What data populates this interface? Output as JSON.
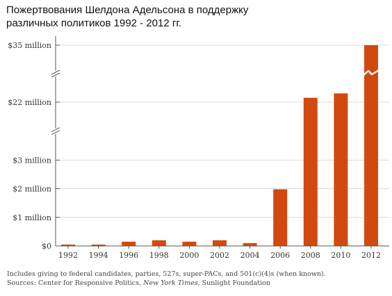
{
  "title_lines": [
    "Пожертвования Шелдона Адельсона в поддержку",
    "различных политиков 1992 - 2012 гг."
  ],
  "footnote": {
    "line1": "Includes giving to federal candidates, parties, 527s, super-PACs, and 501(c)(4)s (when known).",
    "line2_prefix": "Sources: Center for Responsive Politics, ",
    "line2_italic": "New York Times",
    "line2_suffix": ", Sunlight Foundation"
  },
  "colors": {
    "bar": "#d2490f",
    "axis": "#555555",
    "grid": "#cfcfcf",
    "text": "#333333"
  },
  "chart_data": {
    "type": "bar",
    "categories": [
      "1992",
      "1994",
      "1996",
      "1998",
      "2000",
      "2002",
      "2004",
      "2006",
      "2008",
      "2010",
      "2012"
    ],
    "values": [
      0.05,
      0.03,
      0.15,
      0.2,
      0.15,
      0.2,
      0.1,
      1.98,
      23.0,
      24.0,
      35.0
    ],
    "y_ticks": [
      {
        "value": 0,
        "label": "$0"
      },
      {
        "value": 1,
        "label": "$1 million"
      },
      {
        "value": 2,
        "label": "$2 million"
      },
      {
        "value": 3,
        "label": "$3 million"
      },
      {
        "value": 22,
        "label": "$22 million"
      },
      {
        "value": 35,
        "label": "$35 million"
      }
    ],
    "broken_axis": true,
    "axis_breaks_between": [
      [
        3,
        22
      ],
      [
        22,
        35
      ]
    ],
    "bars_with_break_marks": [
      "2008",
      "2010",
      "2012"
    ],
    "units": "million USD",
    "title": "Пожертвования Шелдона Адельсона в поддержку различных политиков 1992 - 2012 гг.",
    "grid": true
  }
}
